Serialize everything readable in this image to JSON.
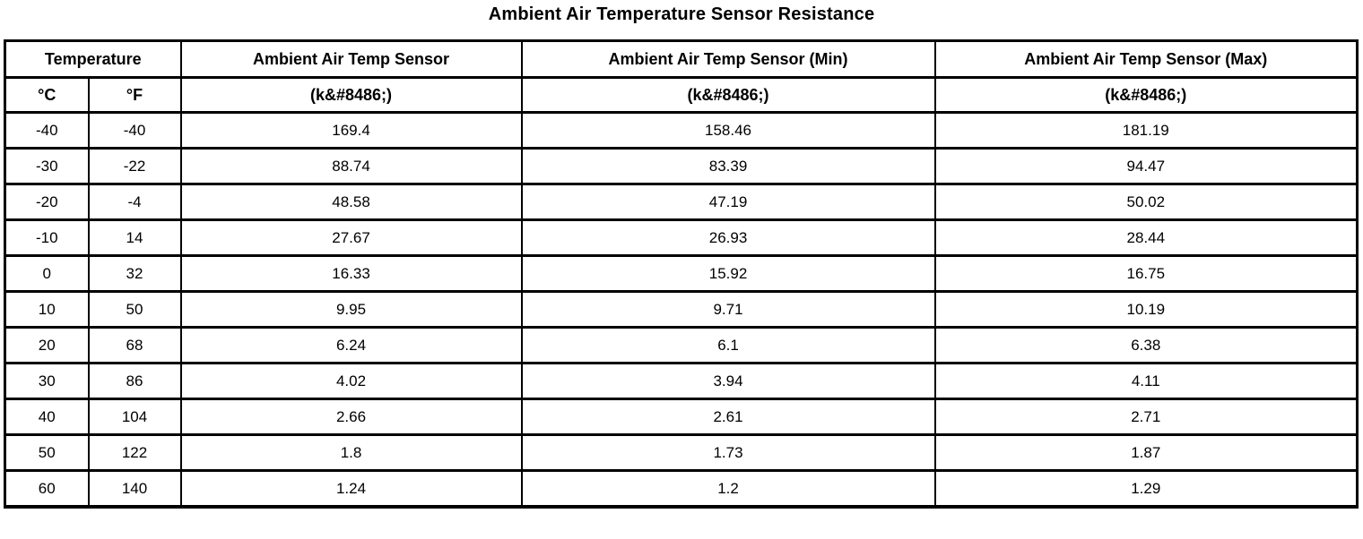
{
  "title": "Ambient Air Temperature Sensor Resistance",
  "colors": {
    "background": "#ffffff",
    "text": "#000000",
    "border": "#000000"
  },
  "table": {
    "group_headers": [
      "Temperature",
      "Ambient Air Temp Sensor",
      "Ambient Air Temp Sensor (Min)",
      "Ambient Air Temp Sensor (Max)"
    ],
    "unit_headers": [
      "°C",
      "°F",
      "(k&#8486;)",
      "(k&#8486;)",
      "(k&#8486;)"
    ],
    "rows": [
      [
        "-40",
        "-40",
        "169.4",
        "158.46",
        "181.19"
      ],
      [
        "-30",
        "-22",
        "88.74",
        "83.39",
        "94.47"
      ],
      [
        "-20",
        "-4",
        "48.58",
        "47.19",
        "50.02"
      ],
      [
        "-10",
        "14",
        "27.67",
        "26.93",
        "28.44"
      ],
      [
        "0",
        "32",
        "16.33",
        "15.92",
        "16.75"
      ],
      [
        "10",
        "50",
        "9.95",
        "9.71",
        "10.19"
      ],
      [
        "20",
        "68",
        "6.24",
        "6.1",
        "6.38"
      ],
      [
        "30",
        "86",
        "4.02",
        "3.94",
        "4.11"
      ],
      [
        "40",
        "104",
        "2.66",
        "2.61",
        "2.71"
      ],
      [
        "50",
        "122",
        "1.8",
        "1.73",
        "1.87"
      ],
      [
        "60",
        "140",
        "1.24",
        "1.2",
        "1.29"
      ]
    ]
  },
  "chart_data": {
    "type": "table",
    "title": "Ambient Air Temperature Sensor Resistance",
    "columns": [
      "Temperature (°C)",
      "Temperature (°F)",
      "Ambient Air Temp Sensor (k&#8486;)",
      "Ambient Air Temp Sensor (Min) (k&#8486;)",
      "Ambient Air Temp Sensor (Max) (k&#8486;)"
    ],
    "rows": [
      [
        -40,
        -40,
        169.4,
        158.46,
        181.19
      ],
      [
        -30,
        -22,
        88.74,
        83.39,
        94.47
      ],
      [
        -20,
        -4,
        48.58,
        47.19,
        50.02
      ],
      [
        -10,
        14,
        27.67,
        26.93,
        28.44
      ],
      [
        0,
        32,
        16.33,
        15.92,
        16.75
      ],
      [
        10,
        50,
        9.95,
        9.71,
        10.19
      ],
      [
        20,
        68,
        6.24,
        6.1,
        6.38
      ],
      [
        30,
        86,
        4.02,
        3.94,
        4.11
      ],
      [
        40,
        104,
        2.66,
        2.61,
        2.71
      ],
      [
        50,
        122,
        1.8,
        1.73,
        1.87
      ],
      [
        60,
        140,
        1.24,
        1.2,
        1.29
      ]
    ]
  }
}
